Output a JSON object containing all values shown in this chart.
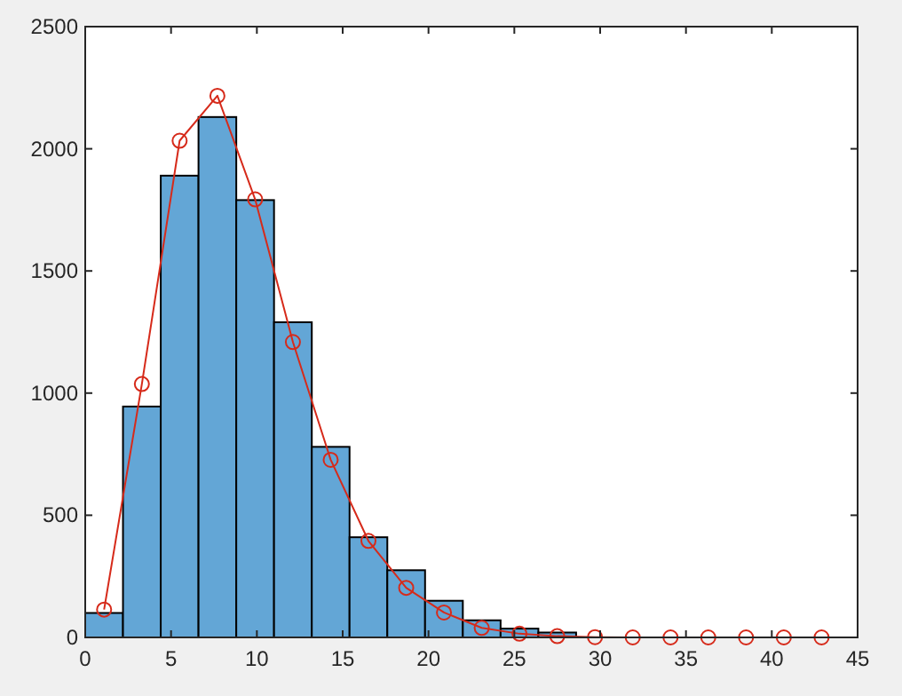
{
  "chart_data": {
    "type": "histogram",
    "bins": [
      0,
      2.2,
      4.4,
      6.6,
      8.8,
      11,
      13.2,
      15.4,
      17.6,
      19.8,
      22,
      24.2,
      26.4,
      28.6,
      30.8,
      33,
      35.2,
      37.4,
      39.6,
      41.8,
      44
    ],
    "values": [
      100,
      945,
      1890,
      2130,
      1790,
      1290,
      780,
      410,
      275,
      150,
      70,
      36,
      20,
      0,
      0,
      0,
      0,
      0,
      0,
      0
    ],
    "color": "#63a6d6",
    "series": [
      {
        "type": "line",
        "color": "#d62a1a",
        "x": [
          1.1,
          3.3,
          5.5,
          7.7,
          9.9,
          12.1,
          14.3,
          16.5,
          18.7,
          20.9,
          23.1,
          25.3,
          27.5,
          29.7,
          31.9,
          34.1,
          36.3,
          38.5,
          40.7,
          42.9
        ],
        "values": [
          114,
          1037,
          2033,
          2217,
          1793,
          1209,
          727,
          395,
          203,
          102,
          39,
          15,
          5,
          1,
          0,
          0,
          0,
          0,
          0,
          0
        ]
      }
    ],
    "marker": "circle",
    "line_style": "solid",
    "xlim": [
      0,
      45
    ],
    "xticks": [
      0,
      5,
      10,
      15,
      20,
      25,
      30,
      35,
      40,
      45
    ],
    "ylim": [
      0,
      2500
    ],
    "yticks": [
      0,
      500,
      1000,
      1500,
      2000,
      2500
    ],
    "grid": false
  }
}
